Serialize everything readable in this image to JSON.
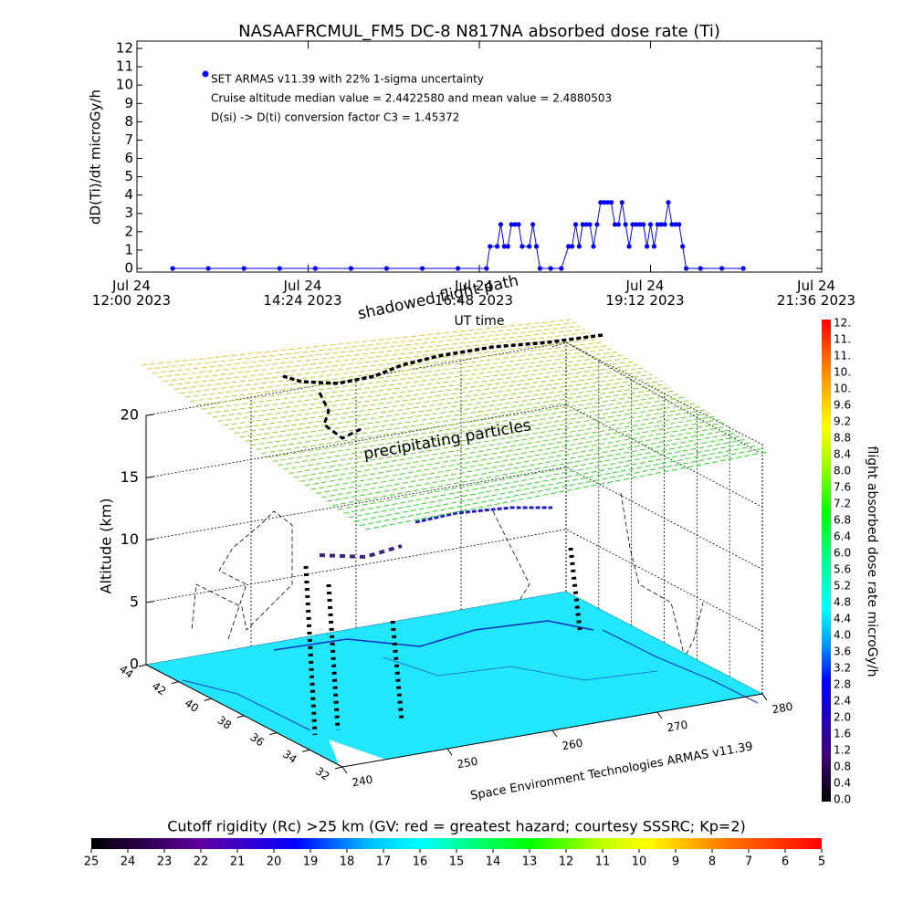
{
  "chart_data": [
    {
      "type": "line",
      "title": "NASAAFRCMUL_FM5 DC-8   N817NA absorbed dose rate (Ti)",
      "y_label": "dD(Ti)/dt microGy/h",
      "x_label": "UT time",
      "xlim": [
        12,
        21.6
      ],
      "xticks": [
        {
          "value": 12,
          "label": "Jul 24\n12:00 2023"
        },
        {
          "value": 14.4,
          "label": "Jul 24\n14:24 2023"
        },
        {
          "value": 16.8,
          "label": "Jul 24\n16:48 2023"
        },
        {
          "value": 19.2,
          "label": "Jul 24\n19:12 2023"
        },
        {
          "value": 21.6,
          "label": "Jul 24\n21:36 2023"
        }
      ],
      "ylim": [
        -0.2,
        12.4
      ],
      "yticks": [
        0,
        1,
        2,
        3,
        4,
        5,
        6,
        7,
        8,
        9,
        10,
        11,
        12
      ],
      "series": [
        {
          "name": "SET ARMAS v11.39 with 22% 1-sigma uncertainty",
          "color": "#0000ff",
          "x": [
            12.5,
            13.0,
            13.5,
            14.0,
            14.5,
            15.0,
            15.5,
            16.0,
            16.5,
            16.9,
            16.95,
            17.05,
            17.1,
            17.15,
            17.2,
            17.25,
            17.3,
            17.35,
            17.4,
            17.5,
            17.55,
            17.6,
            17.65,
            17.8,
            17.95,
            18.05,
            18.1,
            18.15,
            18.2,
            18.25,
            18.3,
            18.35,
            18.4,
            18.45,
            18.5,
            18.55,
            18.6,
            18.65,
            18.7,
            18.75,
            18.8,
            18.85,
            18.9,
            18.95,
            19.0,
            19.05,
            19.1,
            19.15,
            19.2,
            19.25,
            19.3,
            19.35,
            19.4,
            19.45,
            19.5,
            19.55,
            19.6,
            19.65,
            19.7,
            19.9,
            20.2,
            20.5
          ],
          "values": [
            0,
            0,
            0,
            0,
            0,
            0,
            0,
            0,
            0,
            0,
            1.2,
            1.2,
            2.4,
            1.2,
            1.2,
            2.4,
            2.4,
            2.4,
            1.2,
            1.2,
            2.4,
            1.2,
            0,
            0,
            0,
            1.2,
            1.2,
            2.4,
            1.2,
            2.4,
            2.4,
            2.4,
            1.2,
            2.4,
            3.6,
            3.6,
            3.6,
            3.6,
            2.4,
            2.4,
            3.6,
            2.4,
            1.2,
            2.4,
            2.4,
            2.4,
            2.4,
            1.2,
            2.4,
            1.2,
            2.4,
            2.4,
            2.4,
            3.6,
            2.4,
            2.4,
            2.4,
            1.2,
            0,
            0,
            0,
            0
          ]
        }
      ],
      "annotations": [
        "Cruise altitude median value = 2.4422580 and mean value = 2.4880503",
        "D(si) -> D(ti) conversion factor C3 = 1.45372"
      ]
    },
    {
      "type": "surface3d",
      "z_label": "Altitude (km)",
      "zlim": [
        0,
        20
      ],
      "zticks": [
        0,
        5,
        10,
        15,
        20
      ],
      "latlim": [
        44,
        32
      ],
      "lat_ticks": [
        44,
        42,
        40,
        38,
        36,
        34,
        32
      ],
      "lonlim": [
        240,
        280
      ],
      "lon_ticks": [
        240,
        250,
        260,
        270,
        280
      ],
      "annotations": [
        "shadowed flight path",
        "precipitating particles",
        "Space Environment Technologies ARMAS v11.39"
      ]
    },
    {
      "type": "colorbar",
      "orientation": "vertical",
      "label": "flight absorbed dose rate microGy/h",
      "tick_labels": [
        "0.0",
        "0.4",
        "0.8",
        "1.2",
        "1.6",
        "2.0",
        "2.4",
        "2.8",
        "3.2",
        "3.6",
        "4.0",
        "4.4",
        "4.8",
        "5.2",
        "5.6",
        "6.0",
        "6.4",
        "6.8",
        "7.2",
        "7.6",
        "8.0",
        "8.4",
        "8.8",
        "9.2",
        "9.6",
        "10.",
        "10.",
        "11.",
        "11.",
        "12."
      ]
    },
    {
      "type": "colorbar",
      "orientation": "horizontal",
      "title": "Cutoff rigidity (Rc) >25 km (GV: red = greatest hazard; courtesy SSSRC; Kp=2)",
      "lim": [
        25,
        5
      ],
      "ticks": [
        25,
        24,
        23,
        22,
        21,
        20,
        19,
        18,
        17,
        16,
        15,
        14,
        13,
        12,
        11,
        10,
        9,
        8,
        7,
        6,
        5
      ]
    }
  ]
}
